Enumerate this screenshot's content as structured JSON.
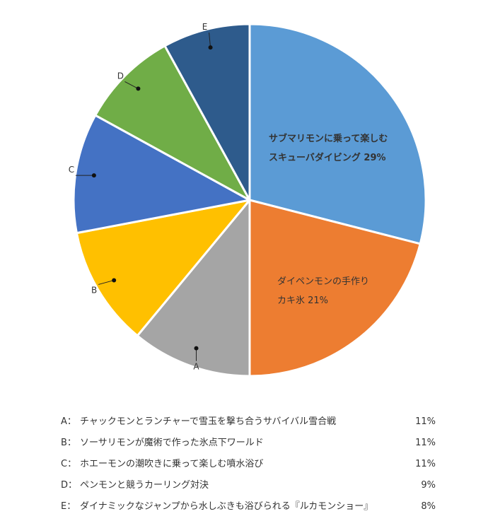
{
  "chart_data": {
    "type": "pie",
    "slices": [
      {
        "label_line1": "サブマリモンに乗って楽しむ",
        "label_line2": "スキューバダイビング",
        "value": 29,
        "value_label": "29%",
        "color": "#5b9bd5",
        "label_bold": true
      },
      {
        "label_line1": "ダイペンモンの手作り",
        "label_line2": "カキ氷",
        "value": 21,
        "value_label": "21%",
        "color": "#ed7d31",
        "label_bold": false
      },
      {
        "key": "A",
        "value": 11,
        "color": "#a5a5a5"
      },
      {
        "key": "B",
        "value": 11,
        "color": "#ffc000"
      },
      {
        "key": "C",
        "value": 11,
        "color": "#4472c4"
      },
      {
        "key": "D",
        "value": 9,
        "color": "#70ad47"
      },
      {
        "key": "E",
        "value": 8,
        "color": "#2e5b8c"
      }
    ]
  },
  "legend": [
    {
      "key": "A：",
      "text": "チャックモンとランチャーで雪玉を撃ち合うサバイバル雪合戦",
      "pct": "11%"
    },
    {
      "key": "B：",
      "text": "ソーサリモンが魔術で作った氷点下ワールド",
      "pct": "11%"
    },
    {
      "key": "C：",
      "text": "ホエーモンの潮吹きに乗って楽しむ噴水浴び",
      "pct": "11%"
    },
    {
      "key": "D：",
      "text": "ペンモンと競うカーリング対決",
      "pct": "9%"
    },
    {
      "key": "E：",
      "text": "ダイナミックなジャンプから水しぶきも浴びられる『ルカモンショー』",
      "pct": "8%"
    }
  ]
}
